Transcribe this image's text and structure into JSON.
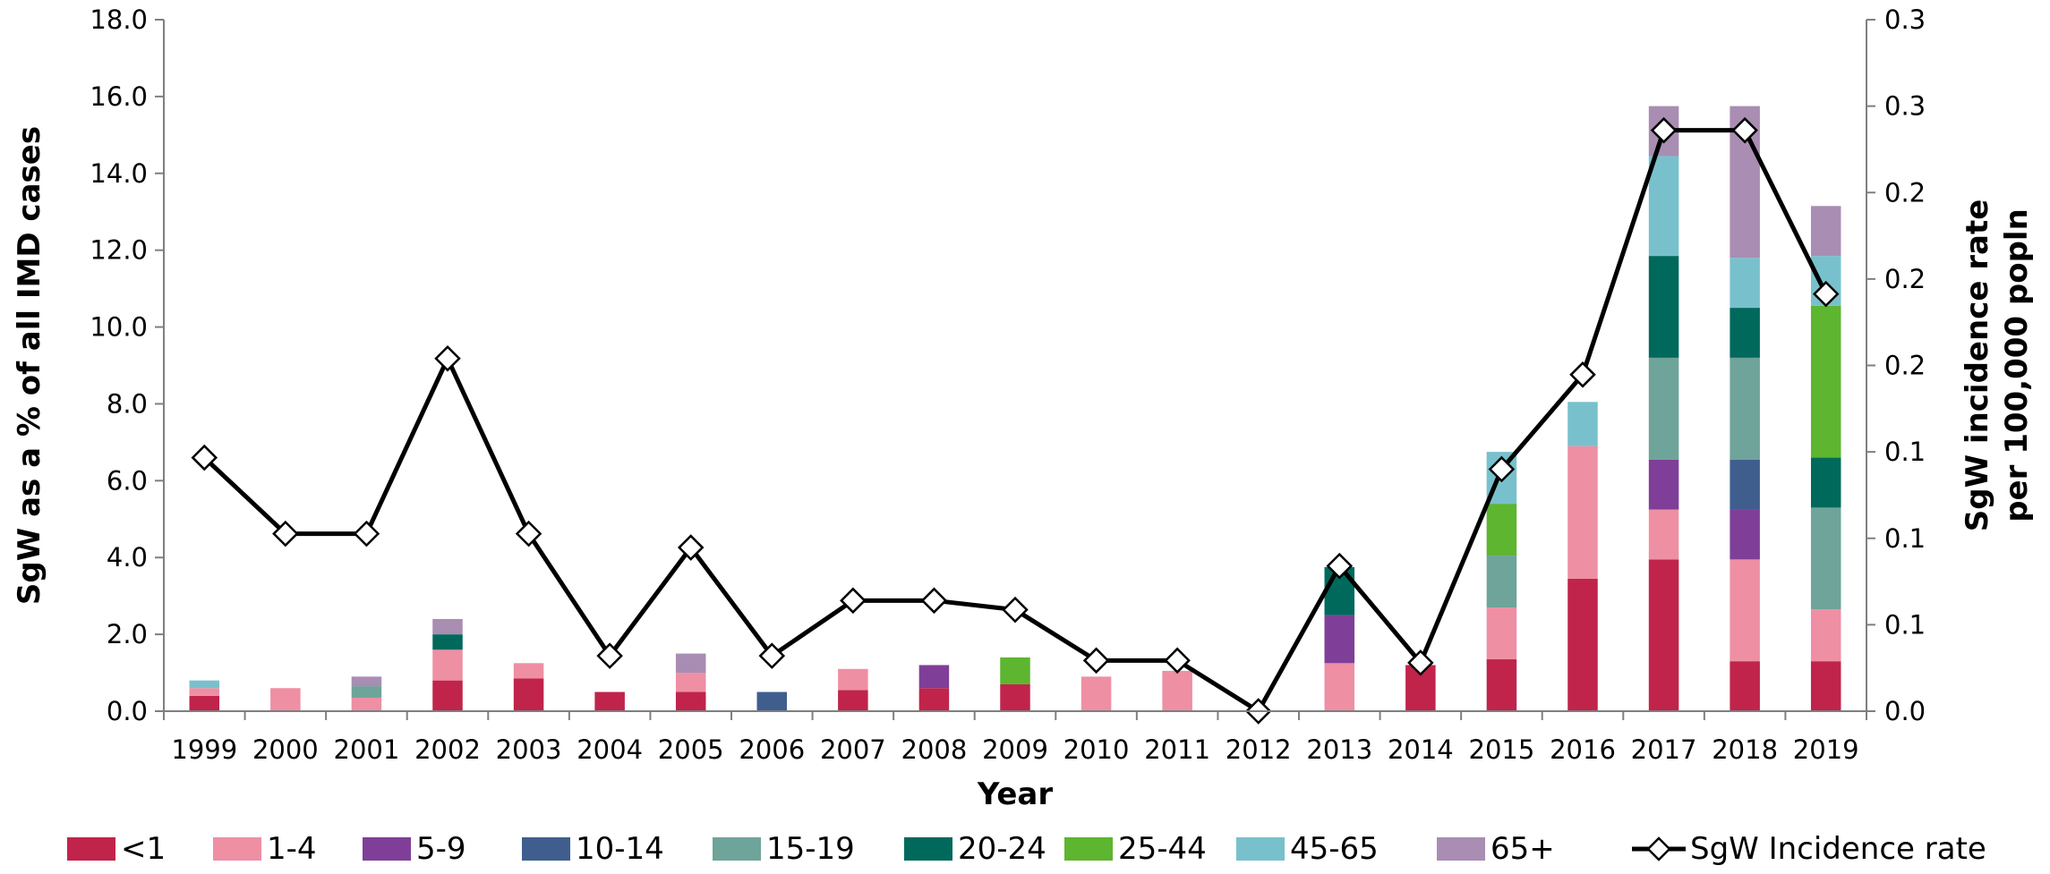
{
  "chart_data": {
    "type": "bar",
    "title": "",
    "xlabel": "Year",
    "ylabel": "SgW as a % of all IMD cases",
    "y2label_line1": "SgW incidence rate",
    "y2label_line2": "per 100,000 popln",
    "ylim": [
      0,
      18
    ],
    "y_ticks": [
      "0.0",
      "2.0",
      "4.0",
      "6.0",
      "8.0",
      "10.0",
      "12.0",
      "14.0",
      "16.0",
      "18.0"
    ],
    "y2lim": [
      0,
      0.3
    ],
    "y2_ticks": [
      "0.0",
      "0.1",
      "0.1",
      "0.1",
      "0.2",
      "0.2",
      "0.2",
      "0.3",
      "0.3"
    ],
    "legend_position": "bottom",
    "grid": false,
    "stacked": true,
    "categories": [
      "1999",
      "2000",
      "2001",
      "2002",
      "2003",
      "2004",
      "2005",
      "2006",
      "2007",
      "2008",
      "2009",
      "2010",
      "2011",
      "2012",
      "2013",
      "2014",
      "2015",
      "2016",
      "2017",
      "2018",
      "2019"
    ],
    "series": [
      {
        "name": "<1",
        "color": "#C0244A",
        "values": [
          0.4,
          0,
          0,
          0.8,
          0.85,
          0.5,
          0.5,
          0,
          0.55,
          0.6,
          0.7,
          0,
          0,
          0,
          0,
          1.2,
          1.35,
          3.45,
          3.95,
          1.3,
          1.3
        ]
      },
      {
        "name": "1-4",
        "color": "#EE8FA4",
        "values": [
          0.2,
          0.6,
          0.35,
          0.8,
          0.4,
          0,
          0.5,
          0,
          0.55,
          0,
          0,
          0.9,
          1.05,
          0,
          1.25,
          0,
          1.35,
          3.45,
          1.3,
          2.65,
          1.35
        ]
      },
      {
        "name": "5-9",
        "color": "#7F3F98",
        "values": [
          0,
          0,
          0,
          0,
          0,
          0,
          0,
          0,
          0,
          0.6,
          0,
          0,
          0,
          0,
          1.25,
          0,
          0,
          0,
          1.3,
          1.3,
          0
        ]
      },
      {
        "name": "10-14",
        "color": "#3F5E8E",
        "values": [
          0,
          0,
          0,
          0,
          0,
          0,
          0,
          0.5,
          0,
          0,
          0,
          0,
          0,
          0,
          0,
          0,
          0,
          0,
          0,
          1.3,
          0
        ]
      },
      {
        "name": "15-19",
        "color": "#6EA49A",
        "values": [
          0,
          0,
          0.3,
          0,
          0,
          0,
          0,
          0,
          0,
          0,
          0,
          0,
          0,
          0,
          0,
          0,
          1.35,
          0,
          2.65,
          2.65,
          2.65
        ]
      },
      {
        "name": "20-24",
        "color": "#00695C",
        "values": [
          0,
          0,
          0,
          0.4,
          0,
          0,
          0,
          0,
          0,
          0,
          0,
          0,
          0,
          0,
          1.25,
          0,
          0,
          0,
          2.65,
          1.3,
          1.3
        ]
      },
      {
        "name": "25-44",
        "color": "#5DB530",
        "values": [
          0,
          0,
          0,
          0,
          0,
          0,
          0,
          0,
          0,
          0,
          0.7,
          0,
          0,
          0,
          0,
          0,
          1.35,
          0,
          0,
          0,
          3.95
        ]
      },
      {
        "name": "45-65",
        "color": "#78C1CC",
        "values": [
          0.2,
          0,
          0,
          0,
          0,
          0,
          0,
          0,
          0,
          0,
          0,
          0,
          0,
          0,
          0,
          0,
          1.35,
          1.15,
          2.6,
          1.3,
          1.3
        ]
      },
      {
        "name": "65+",
        "color": "#A98DB2",
        "values": [
          0,
          0,
          0.25,
          0.4,
          0,
          0,
          0.5,
          0,
          0,
          0,
          0,
          0,
          0,
          0,
          0,
          0,
          0,
          0,
          1.3,
          3.95,
          1.3
        ]
      }
    ],
    "line_series": {
      "name": "SgW Incidence rate",
      "axis": "right",
      "color": "#000000",
      "marker": "diamond",
      "values": [
        0.11,
        0.077,
        0.077,
        0.153,
        0.077,
        0.024,
        0.071,
        0.024,
        0.048,
        0.048,
        0.044,
        0.022,
        0.022,
        0.0,
        0.063,
        0.021,
        0.105,
        0.146,
        0.252,
        0.252,
        0.181
      ]
    }
  }
}
